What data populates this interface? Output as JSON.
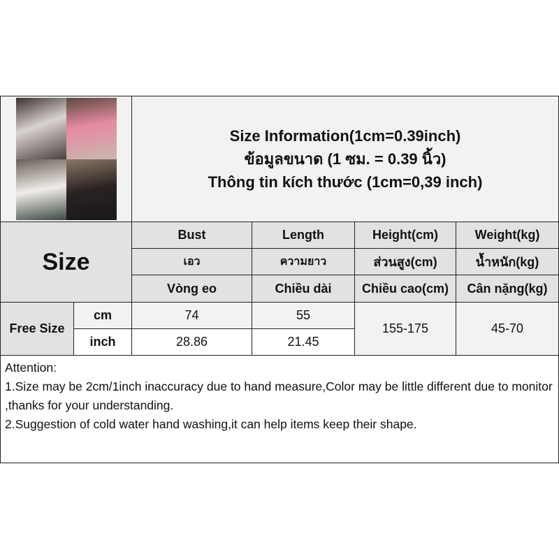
{
  "title": {
    "line1": "Size Information(1cm=0.39inch)",
    "line2": "ข้อมูลขนาด (1 ซม. = 0.39 นิ้ว)",
    "line3": "Thông tin kích thước (1cm=0,39 inch)"
  },
  "size_label": "Size",
  "headers": [
    {
      "en": "Bust",
      "th": "เอว",
      "vi": "Vòng eo"
    },
    {
      "en": "Length",
      "th": "ความยาว",
      "vi": "Chiều dài"
    },
    {
      "en": "Height(cm)",
      "th": "ส่วนสูง(cm)",
      "vi": "Chiều cao(cm)"
    },
    {
      "en": "Weight(kg)",
      "th": "น้ำหนัก(kg)",
      "vi": "Cân nặng(kg)"
    }
  ],
  "row": {
    "size": "Free Size",
    "unit_cm": "cm",
    "unit_inch": "inch",
    "bust_cm": "74",
    "bust_inch": "28.86",
    "length_cm": "55",
    "length_inch": "21.45",
    "height": "155-175",
    "weight": "45-70"
  },
  "attention": {
    "heading": "Attention:",
    "line1": "1.Size may be 2cm/1inch inaccuracy due to hand measure,Color may be little different due to monitor ,thanks for your understanding.",
    "line2": "2.Suggestion of cold water hand washing,it can help items keep their shape."
  }
}
